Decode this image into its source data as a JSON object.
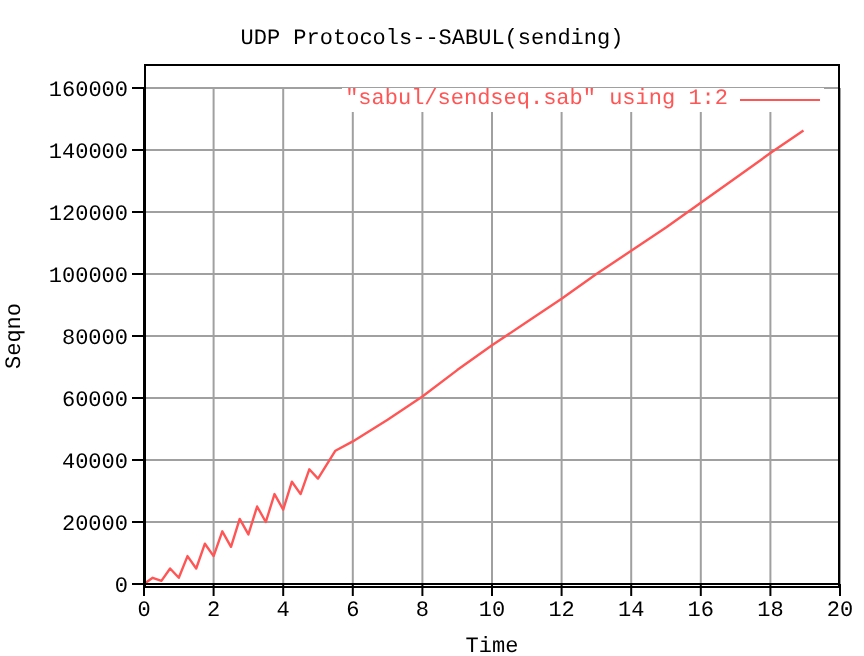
{
  "chart_data": {
    "type": "line",
    "title": "UDP Protocols--SABUL(sending)",
    "xlabel": "Time",
    "ylabel": "Seqno",
    "x": [
      0,
      0.25,
      0.5,
      0.75,
      1,
      1.25,
      1.5,
      1.75,
      2,
      2.25,
      2.5,
      2.75,
      3,
      3.25,
      3.5,
      3.75,
      4,
      4.25,
      4.5,
      4.75,
      5,
      5.5,
      6,
      7,
      8,
      9,
      10,
      11,
      12,
      13,
      14,
      15,
      16,
      17,
      18,
      18.95
    ],
    "series": [
      {
        "name": "\"sabul/sendseq.sab\" using 1:2",
        "color": "#ff5555",
        "values": [
          0,
          2000,
          1000,
          5000,
          2000,
          9000,
          5000,
          13000,
          9000,
          17000,
          12000,
          21000,
          16000,
          25000,
          20000,
          29000,
          24000,
          33000,
          29000,
          37000,
          34000,
          43000,
          46000,
          53000,
          60500,
          69000,
          77000,
          84500,
          92000,
          100000,
          107500,
          115000,
          123000,
          131000,
          139000,
          146300
        ]
      }
    ],
    "xlim": [
      0,
      20
    ],
    "xticks": [
      0,
      2,
      4,
      6,
      8,
      10,
      12,
      14,
      16,
      18,
      20
    ],
    "ylim": [
      0,
      160000
    ],
    "yticks": [
      0,
      20000,
      40000,
      60000,
      80000,
      100000,
      120000,
      140000,
      160000
    ],
    "grid": true,
    "legend": "top right",
    "marker": "none",
    "line_style": "solid"
  }
}
